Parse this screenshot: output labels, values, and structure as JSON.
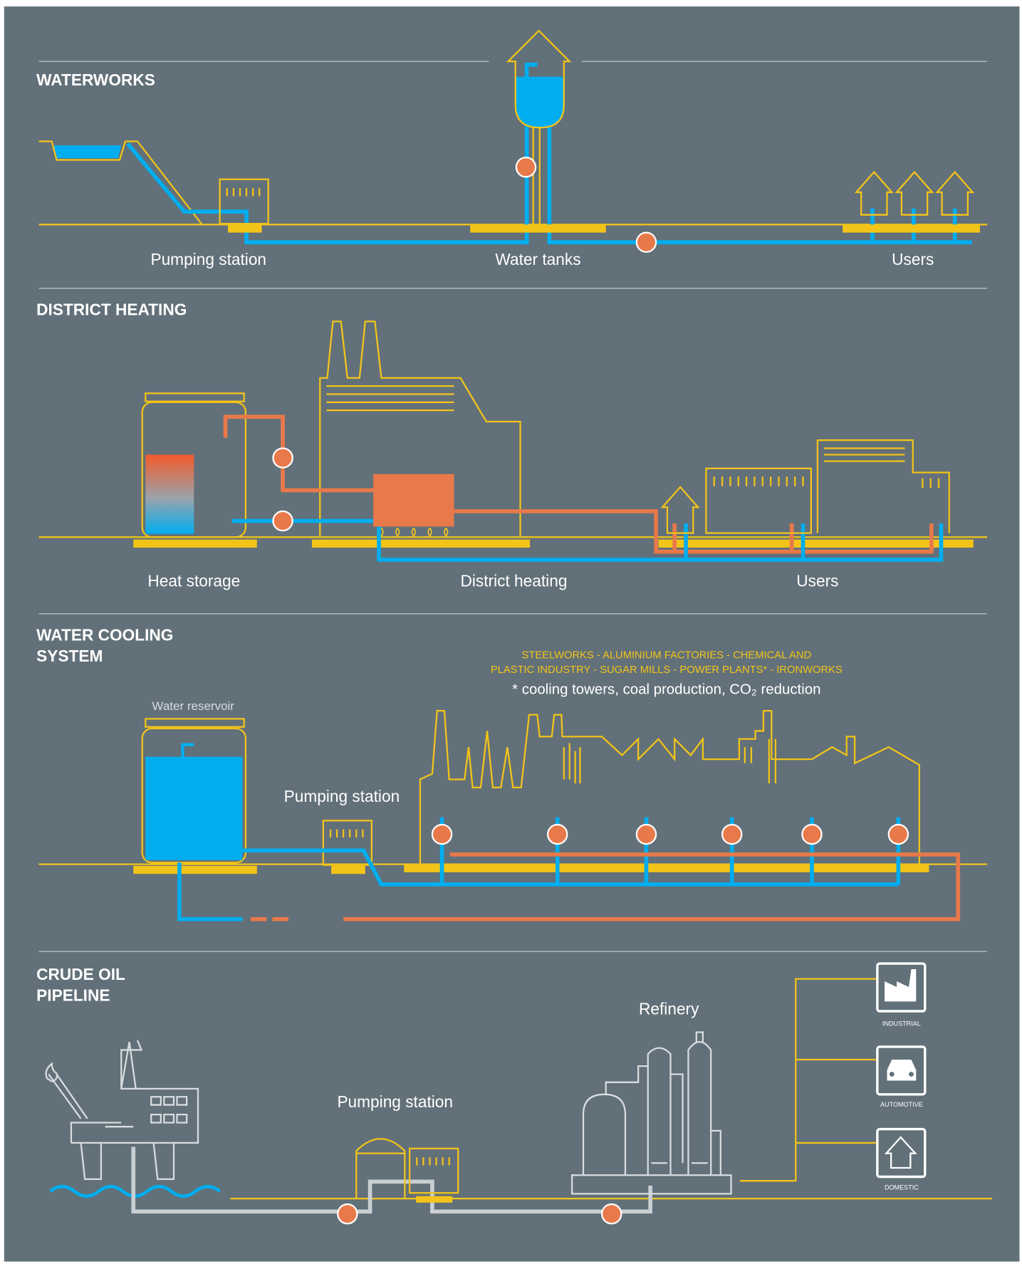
{
  "sections": [
    {
      "title": [
        "WATERWORKS"
      ],
      "labels": [
        "Pumping station",
        "Water tanks",
        "Users"
      ]
    },
    {
      "title": [
        "DISTRICT HEATING"
      ],
      "labels": [
        "Heat storage",
        "District heating",
        "Users"
      ]
    },
    {
      "title": [
        "WATER COOLING",
        "SYSTEM"
      ],
      "labels": [
        "Water reservoir",
        "Pumping station"
      ],
      "industries": [
        "STEELWORKS - ALUMINIUM FACTORIES - CHEMICAL AND",
        "PLASTIC INDUSTRY - SUGAR MILLS - POWER PLANTS* - IRONWORKS"
      ],
      "note": "* cooling towers, coal production, CO₂ reduction"
    },
    {
      "title": [
        "CRUDE OIL",
        "PIPELINE"
      ],
      "labels": [
        "Pumping station",
        "Refinery"
      ],
      "uses": [
        "INDUSTRIAL",
        "AUTOMOTIVE",
        "DOMESTIC"
      ]
    }
  ]
}
